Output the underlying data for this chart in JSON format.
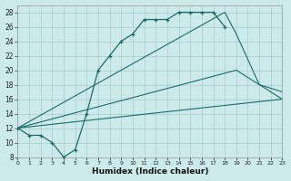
{
  "xlabel": "Humidex (Indice chaleur)",
  "background_color": "#cceaea",
  "grid_color": "#aacccc",
  "line_color": "#1a6b6b",
  "xlim": [
    0,
    23
  ],
  "ylim": [
    8,
    29
  ],
  "xticks": [
    0,
    1,
    2,
    3,
    4,
    5,
    6,
    7,
    8,
    9,
    10,
    11,
    12,
    13,
    14,
    15,
    16,
    17,
    18,
    19,
    20,
    21,
    22,
    23
  ],
  "yticks": [
    8,
    10,
    12,
    14,
    16,
    18,
    20,
    22,
    24,
    26,
    28
  ],
  "line1_x": [
    0,
    1,
    2,
    3,
    4,
    5,
    6,
    7,
    8,
    9,
    10,
    11,
    12,
    13,
    14,
    15,
    16,
    17,
    18
  ],
  "line1_y": [
    12,
    11,
    11,
    10,
    8,
    9,
    14,
    20,
    22,
    24,
    25,
    27,
    27,
    27,
    28,
    28,
    28,
    28,
    26
  ],
  "line2_x": [
    0,
    18,
    19,
    21,
    23
  ],
  "line2_y": [
    12,
    28,
    25,
    18,
    17
  ],
  "line3_x": [
    0,
    19,
    21,
    23
  ],
  "line3_y": [
    12,
    20,
    18,
    16
  ],
  "line4_x": [
    0,
    23
  ],
  "line4_y": [
    12,
    16
  ]
}
